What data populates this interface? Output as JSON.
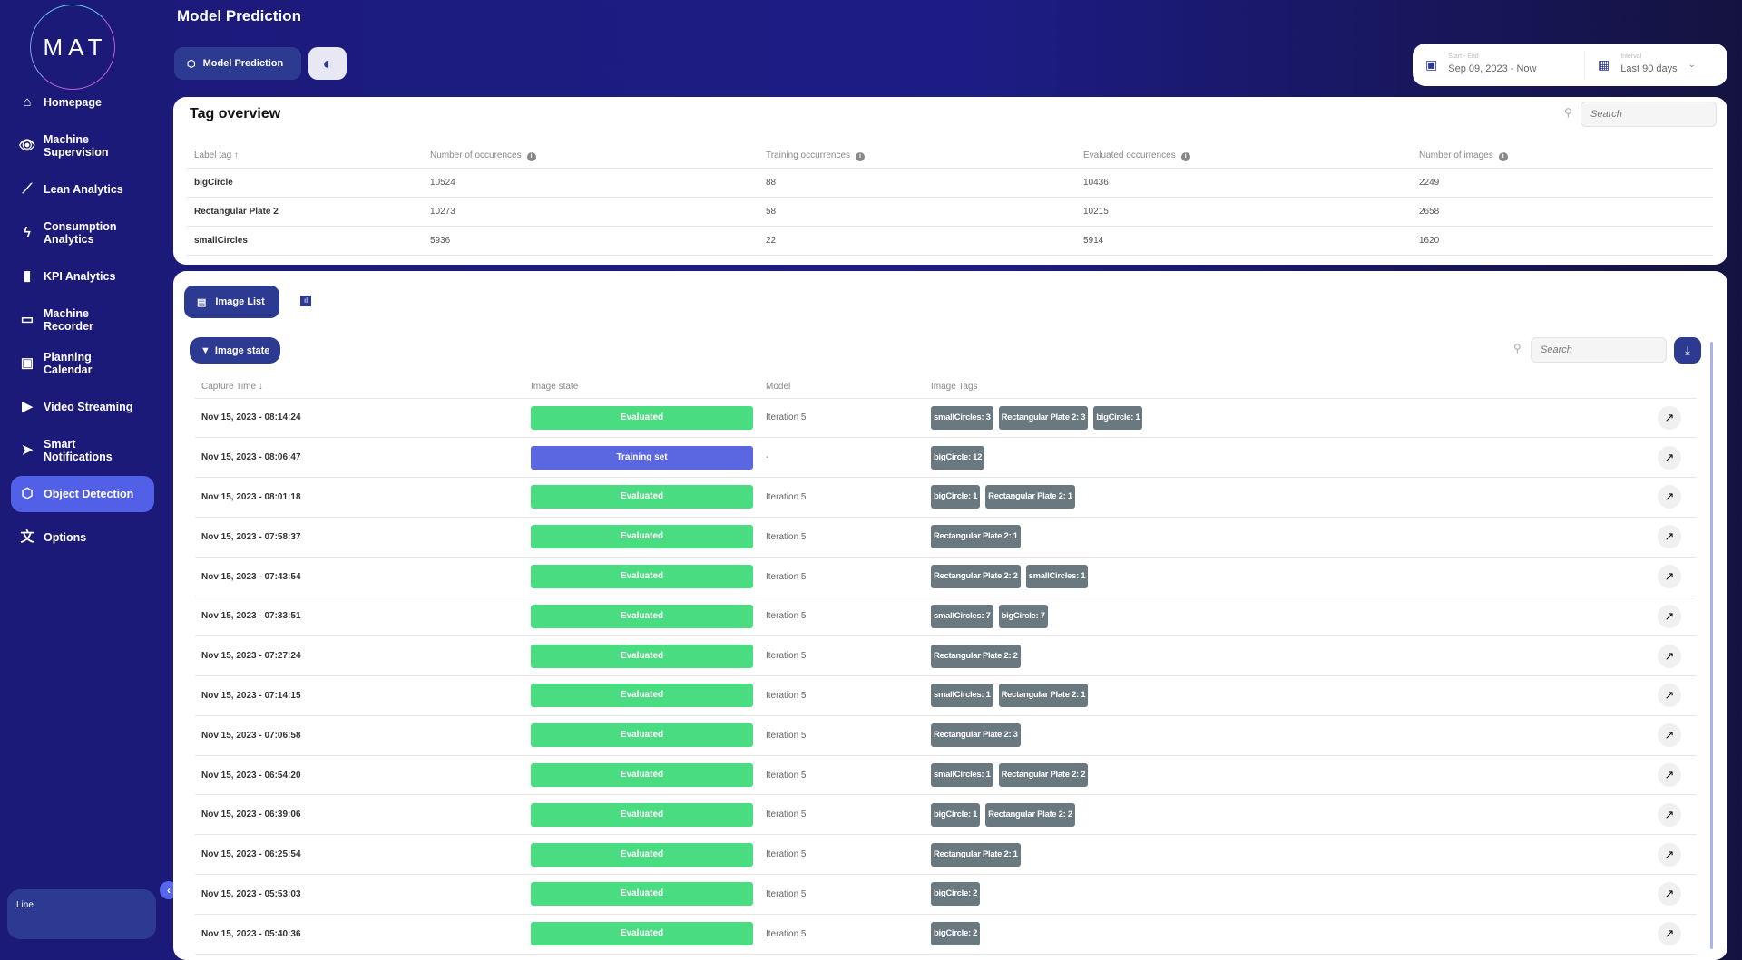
{
  "logo": "MAT",
  "page_title": "Model Prediction",
  "sidebar": {
    "items": [
      {
        "label": "Homepage",
        "icon": "⌂",
        "name": "home"
      },
      {
        "label": "Machine Supervision",
        "icon": "👁",
        "name": "eye"
      },
      {
        "label": "Lean Analytics",
        "icon": "⟋",
        "name": "trend"
      },
      {
        "label": "Consumption Analytics",
        "icon": "ϟ",
        "name": "bolt"
      },
      {
        "label": "KPI Analytics",
        "icon": "▮",
        "name": "bar-chart"
      },
      {
        "label": "Machine Recorder",
        "icon": "▭",
        "name": "recorder"
      },
      {
        "label": "Planning Calendar",
        "icon": "▣",
        "name": "calendar"
      },
      {
        "label": "Video Streaming",
        "icon": "▶",
        "name": "play"
      },
      {
        "label": "Smart Notifications",
        "icon": "➤",
        "name": "send"
      },
      {
        "label": "Object Detection",
        "icon": "⬡",
        "name": "object-detection",
        "active": true
      },
      {
        "label": "Options",
        "icon": "文",
        "name": "translate"
      }
    ],
    "line_label": "Line"
  },
  "toolbar": {
    "model_prediction": "Model Prediction"
  },
  "date": {
    "range_label": "Start - End",
    "range_value": "Sep 09, 2023 - Now",
    "interval_label": "Interval",
    "interval_value": "Last 90 days"
  },
  "tag_overview": {
    "title": "Tag overview",
    "search_placeholder": "Search",
    "columns": [
      "Label tag",
      "Number of occurences",
      "Training occurrences",
      "Evaluated occurrences",
      "Number of images"
    ],
    "rows": [
      [
        "bigCircle",
        "10524",
        "88",
        "10436",
        "2249"
      ],
      [
        "Rectangular Plate 2",
        "10273",
        "58",
        "10215",
        "2658"
      ],
      [
        "smallCircles",
        "5936",
        "22",
        "5914",
        "1620"
      ]
    ]
  },
  "image_list": {
    "tab_label": "Image List",
    "filter_label": "Image state",
    "search_placeholder": "Search",
    "columns": [
      "Capture Time",
      "Image state",
      "Model",
      "Image Tags"
    ],
    "state_colors": {
      "Evaluated": "#4adc80",
      "Training set": "#5a67e0"
    },
    "rows": [
      {
        "time": "Nov 15, 2023 - 08:14:24",
        "state": "Evaluated",
        "model": "Iteration 5",
        "tags": [
          "smallCircles: 3",
          "Rectangular Plate 2: 3",
          "bigCircle: 1"
        ]
      },
      {
        "time": "Nov 15, 2023 - 08:06:47",
        "state": "Training set",
        "model": "-",
        "tags": [
          "bigCircle: 12"
        ]
      },
      {
        "time": "Nov 15, 2023 - 08:01:18",
        "state": "Evaluated",
        "model": "Iteration 5",
        "tags": [
          "bigCircle: 1",
          "Rectangular Plate 2: 1"
        ]
      },
      {
        "time": "Nov 15, 2023 - 07:58:37",
        "state": "Evaluated",
        "model": "Iteration 5",
        "tags": [
          "Rectangular Plate 2: 1"
        ]
      },
      {
        "time": "Nov 15, 2023 - 07:43:54",
        "state": "Evaluated",
        "model": "Iteration 5",
        "tags": [
          "Rectangular Plate 2: 2",
          "smallCircles: 1"
        ]
      },
      {
        "time": "Nov 15, 2023 - 07:33:51",
        "state": "Evaluated",
        "model": "Iteration 5",
        "tags": [
          "smallCircles: 7",
          "bigCircle: 7"
        ]
      },
      {
        "time": "Nov 15, 2023 - 07:27:24",
        "state": "Evaluated",
        "model": "Iteration 5",
        "tags": [
          "Rectangular Plate 2: 2"
        ]
      },
      {
        "time": "Nov 15, 2023 - 07:14:15",
        "state": "Evaluated",
        "model": "Iteration 5",
        "tags": [
          "smallCircles: 1",
          "Rectangular Plate 2: 1"
        ]
      },
      {
        "time": "Nov 15, 2023 - 07:06:58",
        "state": "Evaluated",
        "model": "Iteration 5",
        "tags": [
          "Rectangular Plate 2: 3"
        ]
      },
      {
        "time": "Nov 15, 2023 - 06:54:20",
        "state": "Evaluated",
        "model": "Iteration 5",
        "tags": [
          "smallCircles: 1",
          "Rectangular Plate 2: 2"
        ]
      },
      {
        "time": "Nov 15, 2023 - 06:39:06",
        "state": "Evaluated",
        "model": "Iteration 5",
        "tags": [
          "bigCircle: 1",
          "Rectangular Plate 2: 2"
        ]
      },
      {
        "time": "Nov 15, 2023 - 06:25:54",
        "state": "Evaluated",
        "model": "Iteration 5",
        "tags": [
          "Rectangular Plate 2: 1"
        ]
      },
      {
        "time": "Nov 15, 2023 - 05:53:03",
        "state": "Evaluated",
        "model": "Iteration 5",
        "tags": [
          "bigCircle: 2"
        ]
      },
      {
        "time": "Nov 15, 2023 - 05:40:36",
        "state": "Evaluated",
        "model": "Iteration 5",
        "tags": [
          "bigCircle: 2"
        ]
      }
    ]
  }
}
